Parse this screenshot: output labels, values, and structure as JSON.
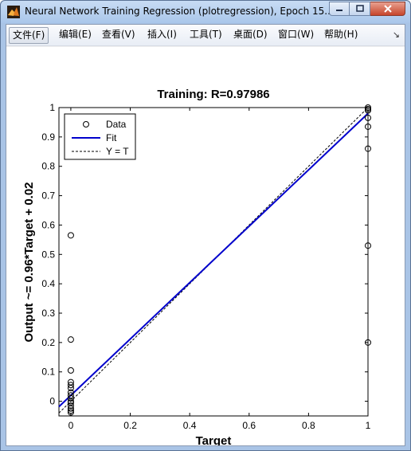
{
  "window": {
    "title": "Neural Network Training Regression (plotregression), Epoch 15...",
    "minimize_icon": "minimize-icon",
    "maximize_icon": "maximize-icon",
    "close_icon": "close-icon"
  },
  "menu": {
    "items": [
      {
        "label": "文件(F)"
      },
      {
        "label": "编辑(E)"
      },
      {
        "label": "查看(V)"
      },
      {
        "label": "插入(I)"
      },
      {
        "label": "工具(T)"
      },
      {
        "label": "桌面(D)"
      },
      {
        "label": "窗口(W)"
      },
      {
        "label": "帮助(H)"
      }
    ],
    "overflow_icon": "chevron-icon"
  },
  "chart_data": {
    "type": "scatter",
    "title": "Training: R=0.97986",
    "xlabel": "Target",
    "ylabel": "Output ~= 0.96*Target + 0.02",
    "xlim": [
      -0.04,
      1.0
    ],
    "ylim": [
      -0.05,
      1.0
    ],
    "x_ticks": [
      "0",
      "0.2",
      "0.4",
      "0.6",
      "0.8",
      "1"
    ],
    "y_ticks": [
      "0",
      "0.1",
      "0.2",
      "0.3",
      "0.4",
      "0.5",
      "0.6",
      "0.7",
      "0.8",
      "0.9",
      "1"
    ],
    "grid": false,
    "legend_position": "top-left",
    "legend": [
      "Data",
      "Fit",
      "Y = T"
    ],
    "colors": {
      "fit": "#0000cc",
      "identity": "#000000",
      "data": "#000000"
    },
    "fit": {
      "slope": 0.96,
      "intercept": 0.02
    },
    "data_points": [
      {
        "x": 0,
        "y": 0.565
      },
      {
        "x": 0,
        "y": 0.21
      },
      {
        "x": 0,
        "y": 0.105
      },
      {
        "x": 0,
        "y": 0.065
      },
      {
        "x": 0,
        "y": 0.055
      },
      {
        "x": 0,
        "y": 0.045
      },
      {
        "x": 0,
        "y": 0.03
      },
      {
        "x": 0,
        "y": 0.02
      },
      {
        "x": 0,
        "y": 0.01
      },
      {
        "x": 0,
        "y": 0.0
      },
      {
        "x": 0,
        "y": -0.005
      },
      {
        "x": 0,
        "y": -0.015
      },
      {
        "x": 0,
        "y": -0.025
      },
      {
        "x": 0,
        "y": -0.032
      },
      {
        "x": 0,
        "y": -0.038
      },
      {
        "x": 1,
        "y": 1.0
      },
      {
        "x": 1,
        "y": 0.995
      },
      {
        "x": 1,
        "y": 0.99
      },
      {
        "x": 1,
        "y": 0.965
      },
      {
        "x": 1,
        "y": 0.935
      },
      {
        "x": 1,
        "y": 0.86
      },
      {
        "x": 1,
        "y": 0.53
      },
      {
        "x": 1,
        "y": 0.2
      }
    ]
  }
}
